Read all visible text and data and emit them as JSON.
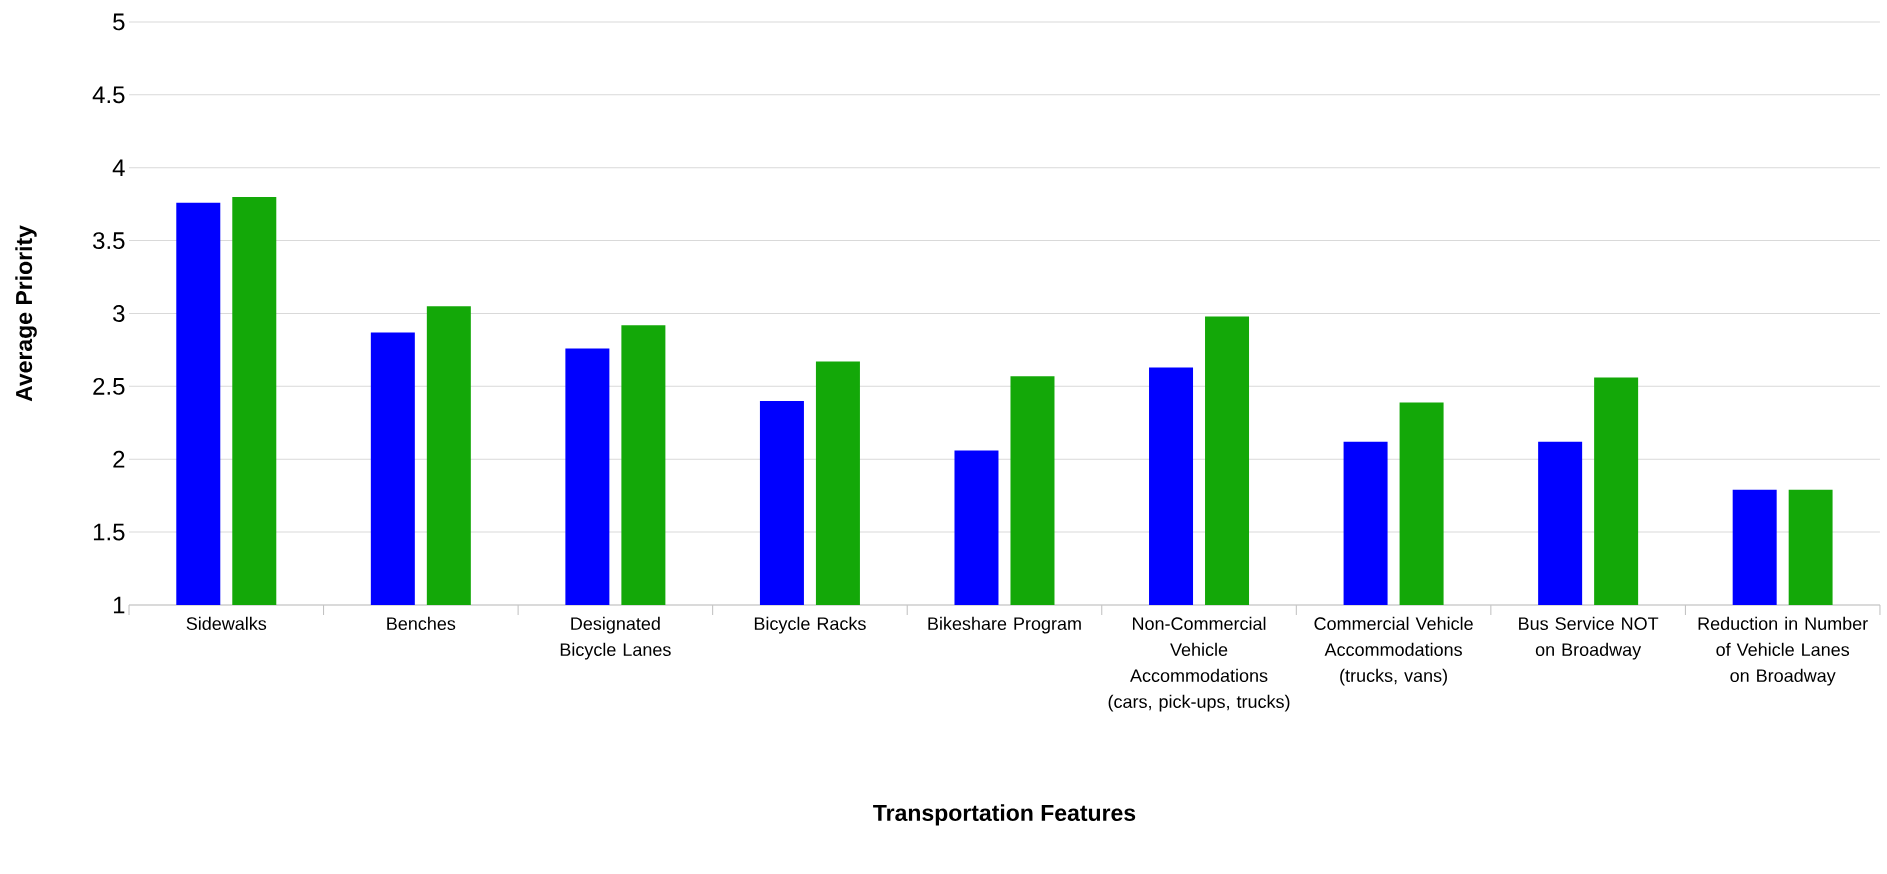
{
  "chart_data": {
    "type": "bar",
    "xlabel": "Transportation Features",
    "ylabel": "Average Priority",
    "categories": [
      "Sidewalks",
      "Benches",
      "Designated Bicycle Lanes",
      "Bicycle Racks",
      "Bikeshare Program",
      "Non-Commercial Vehicle Accommodations (cars, pick-ups, trucks)",
      "Commercial Vehicle Accommodations (trucks, vans)",
      "Bus Service NOT on Broadway",
      "Reduction in Number of Vehicle Lanes on Broadway"
    ],
    "series": [
      {
        "color": "#0000ff",
        "values": [
          3.76,
          2.87,
          2.76,
          2.4,
          2.06,
          2.63,
          2.12,
          2.12,
          1.79
        ]
      },
      {
        "color": "#13a808",
        "values": [
          3.8,
          3.05,
          2.92,
          2.67,
          2.57,
          2.98,
          2.39,
          2.56,
          1.79
        ]
      }
    ],
    "ylim": [
      1,
      5
    ],
    "yticks": [
      1,
      1.5,
      2,
      2.5,
      3,
      3.5,
      4,
      4.5,
      5
    ],
    "grid": "y"
  }
}
